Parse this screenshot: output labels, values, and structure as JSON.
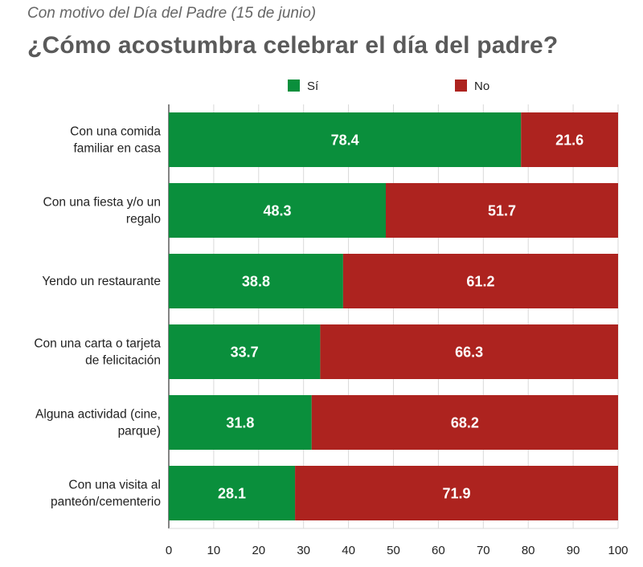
{
  "header": {
    "subtitle": "Con motivo del Día del Padre (15 de junio)",
    "title": "¿Cómo acostumbra celebrar el día del padre?"
  },
  "chart_data": {
    "type": "bar",
    "orientation": "horizontal",
    "stacked": true,
    "categories": [
      [
        "Con una comida",
        "familiar en casa"
      ],
      [
        "Con una fiesta y/o un",
        "regalo"
      ],
      [
        "Yendo un restaurante"
      ],
      [
        "Con una carta o tarjeta",
        "de felicitación"
      ],
      [
        "Alguna actividad (cine,",
        "parque)"
      ],
      [
        "Con una visita al",
        "panteón/cementerio"
      ]
    ],
    "series": [
      {
        "name": "Sí",
        "color": "#0a8f3c",
        "values": [
          78.4,
          48.3,
          38.8,
          33.7,
          31.8,
          28.1
        ]
      },
      {
        "name": "No",
        "color": "#ad231f",
        "values": [
          21.6,
          51.7,
          61.2,
          66.3,
          68.2,
          71.9
        ]
      }
    ],
    "xlim": [
      0,
      100
    ],
    "xticks": [
      0,
      10,
      20,
      30,
      40,
      50,
      60,
      70,
      80,
      90,
      100
    ],
    "grid": true,
    "legend_position": "top-center"
  }
}
